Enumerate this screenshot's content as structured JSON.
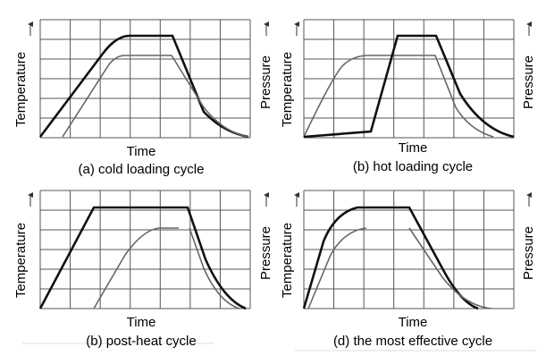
{
  "panels": [
    {
      "y_label": "Temperature",
      "y2_label": "Pressure",
      "x_label": "Time",
      "caption": "(a) cold loading cycle"
    },
    {
      "y_label": "Temperature",
      "y2_label": "Pressure",
      "x_label": "Time",
      "caption": "(b) hot loading cycle"
    },
    {
      "y_label": "Temperature",
      "y2_label": "Pressure",
      "x_label": "Time",
      "caption": "(b) post-heat cycle"
    },
    {
      "y_label": "Temperature",
      "y2_label": "Pressure",
      "x_label": "Time",
      "caption": "(d) the most effective cycle"
    }
  ]
}
